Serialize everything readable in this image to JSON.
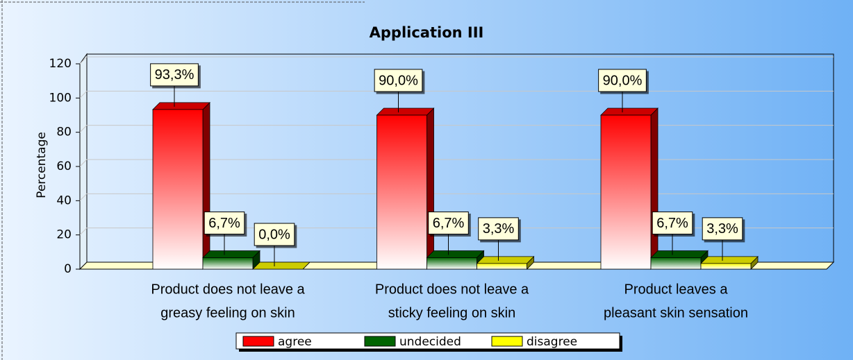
{
  "chart_data": {
    "type": "bar3d",
    "title": "Application III",
    "y_label": "Percentage",
    "categories": [
      [
        "Product does not leave a",
        "greasy feeling on skin"
      ],
      [
        "Product does not leave a",
        "sticky feeling on skin"
      ],
      [
        "Product leaves a",
        "pleasant skin sensation"
      ]
    ],
    "series": [
      {
        "name": "agree",
        "color": "#ff0000",
        "values": [
          93.3,
          90.0,
          90.0
        ],
        "value_labels": [
          "93,3%",
          "90,0%",
          "90,0%"
        ]
      },
      {
        "name": "undecided",
        "color": "#006400",
        "values": [
          6.7,
          6.7,
          6.7
        ],
        "value_labels": [
          "6,7%",
          "6,7%",
          "6,7%"
        ]
      },
      {
        "name": "disagree",
        "color": "#ffff00",
        "values": [
          0.0,
          3.3,
          3.3
        ],
        "value_labels": [
          "0,0%",
          "3,3%",
          "3,3%"
        ]
      }
    ],
    "ylim": [
      0,
      120
    ],
    "yticks": [
      0,
      20,
      40,
      60,
      80,
      100,
      120
    ],
    "grid": true,
    "legend": "bottom"
  }
}
